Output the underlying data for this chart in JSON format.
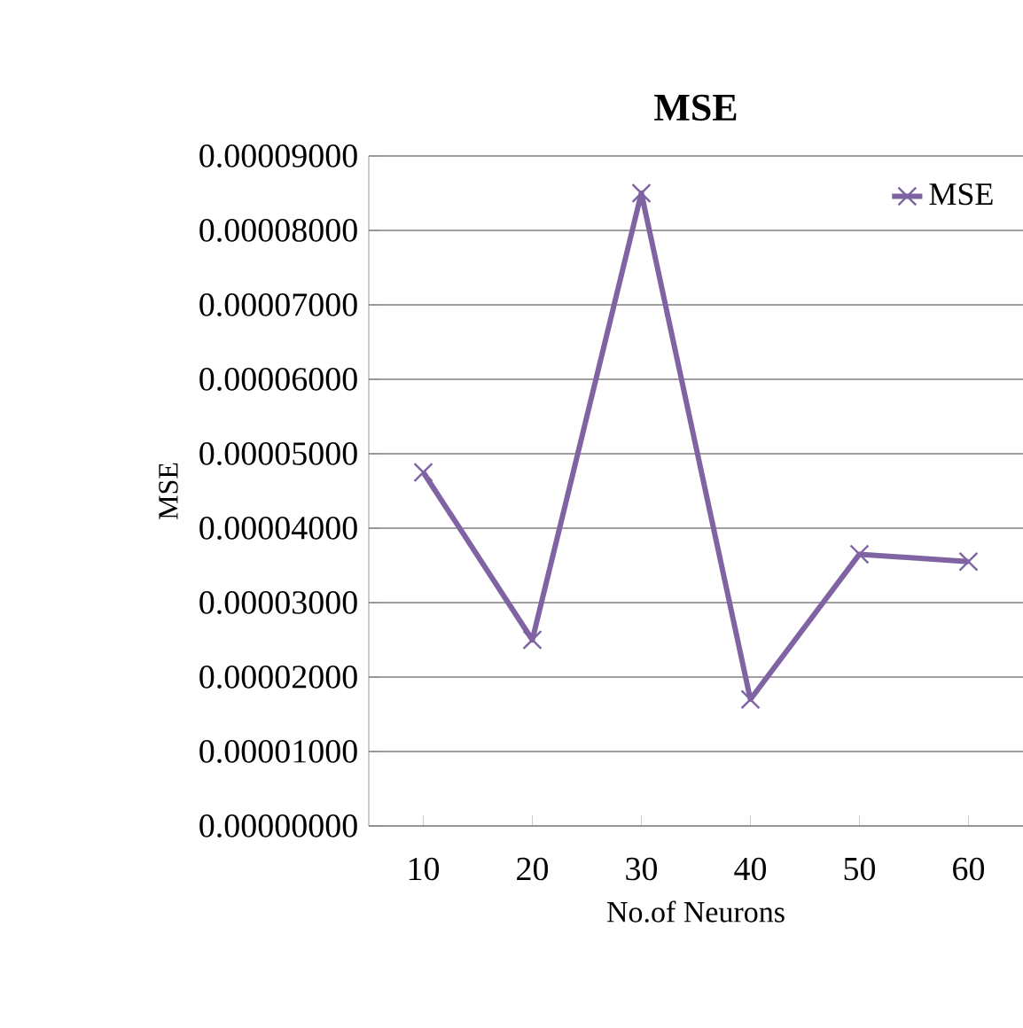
{
  "chart_data": {
    "type": "line",
    "title": "MSE",
    "xlabel": "No.of Neurons",
    "ylabel": "MSE",
    "categories": [
      "10",
      "20",
      "30",
      "40",
      "50",
      "60"
    ],
    "series": [
      {
        "name": "MSE",
        "color": "#7f63a2",
        "values": [
          4.75e-05,
          2.5e-05,
          8.5e-05,
          1.7e-05,
          3.65e-05,
          3.55e-05
        ]
      }
    ],
    "ylim": [
      0,
      9e-05
    ],
    "yticks": [
      {
        "value": 0,
        "label": "0.00000000"
      },
      {
        "value": 1e-05,
        "label": "0.00001000"
      },
      {
        "value": 2e-05,
        "label": "0.00002000"
      },
      {
        "value": 3e-05,
        "label": "0.00003000"
      },
      {
        "value": 4e-05,
        "label": "0.00004000"
      },
      {
        "value": 5e-05,
        "label": "0.00005000"
      },
      {
        "value": 6e-05,
        "label": "0.00006000"
      },
      {
        "value": 7e-05,
        "label": "0.00007000"
      },
      {
        "value": 8e-05,
        "label": "0.00008000"
      },
      {
        "value": 9e-05,
        "label": "0.00009000"
      }
    ],
    "grid": "y",
    "legend": "top right",
    "marker": "cross",
    "line_style": "solid"
  }
}
